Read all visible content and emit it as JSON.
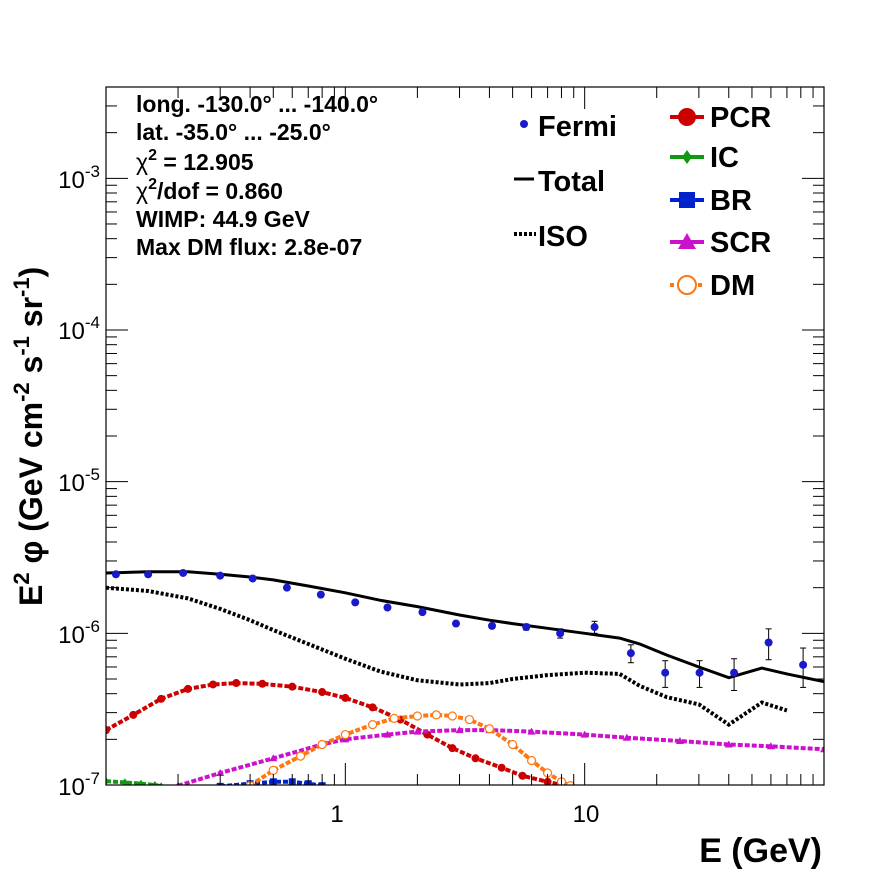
{
  "chart_data": {
    "type": "line",
    "x_scale": "log",
    "y_scale": "log",
    "xlim": [
      0.1,
      100
    ],
    "ylim": [
      1e-07,
      0.004
    ],
    "xlabel": "E (GeV)",
    "ylabel": {
      "base": "E",
      "sup1": "2",
      "phi": "φ (GeV cm",
      "sup2": "-2",
      "mid": " s",
      "sup3": "-1",
      "end": " sr",
      "sup4": "-1",
      "close": ")"
    },
    "x_ticks": [
      {
        "value": 1,
        "label": "1"
      },
      {
        "value": 10,
        "label": "10"
      }
    ],
    "y_ticks": [
      {
        "value": 1e-07,
        "base": "10",
        "exp": "-7"
      },
      {
        "value": 1e-06,
        "base": "10",
        "exp": "-6"
      },
      {
        "value": 1e-05,
        "base": "10",
        "exp": "-5"
      },
      {
        "value": 0.0001,
        "base": "10",
        "exp": "-4"
      },
      {
        "value": 0.001,
        "base": "10",
        "exp": "-3"
      }
    ],
    "info_text": {
      "longitude": "long. -130.0° ... -140.0°",
      "latitude": "lat. -35.0° ... -25.0°",
      "chi2_label": "χ",
      "chi2_sup": "2",
      "chi2_value": " = 12.905",
      "chi2dof_label": "χ",
      "chi2dof_sup": "2",
      "chi2dof_value": "/dof = 0.860",
      "wimp": "WIMP: 44.9 GeV",
      "max_dm_flux": "Max DM flux: 2.8e-07"
    },
    "legend": [
      {
        "name": "Fermi",
        "color": "#1a1acc",
        "style": "point"
      },
      {
        "name": "Total",
        "color": "#000000",
        "style": "solid"
      },
      {
        "name": "ISO",
        "color": "#000000",
        "style": "dotted"
      },
      {
        "name": "PCR",
        "color": "#cc0000",
        "style": "circle"
      },
      {
        "name": "IC",
        "color": "#119911",
        "style": "diamond"
      },
      {
        "name": "BR",
        "color": "#0022cc",
        "style": "square"
      },
      {
        "name": "SCR",
        "color": "#cc11cc",
        "style": "triangle"
      },
      {
        "name": "DM",
        "color": "#ff7711",
        "style": "open-circle"
      }
    ],
    "series": [
      {
        "name": "Total",
        "color": "#000000",
        "style": "solid",
        "x": [
          0.1,
          0.15,
          0.22,
          0.3,
          0.4,
          0.5,
          0.7,
          1.0,
          1.4,
          2.0,
          3.0,
          4.0,
          5.0,
          7.0,
          10.0,
          14.0,
          17.0,
          22.0,
          30.0,
          40.0,
          55.0,
          70.0,
          100.0
        ],
        "y": [
          2.5e-06,
          2.55e-06,
          2.55e-06,
          2.45e-06,
          2.35e-06,
          2.25e-06,
          2.05e-06,
          1.85e-06,
          1.65e-06,
          1.5e-06,
          1.32e-06,
          1.22e-06,
          1.16e-06,
          1.08e-06,
          1e-06,
          9.3e-07,
          8.5e-07,
          7.2e-07,
          6e-07,
          5.1e-07,
          5.9e-07,
          5.4e-07,
          4.8e-07
        ]
      },
      {
        "name": "ISO",
        "color": "#000000",
        "style": "dotted",
        "x": [
          0.1,
          0.15,
          0.22,
          0.3,
          0.4,
          0.5,
          0.7,
          1.0,
          1.4,
          2.0,
          3.0,
          4.0,
          5.0,
          7.0,
          10.0,
          14.0,
          17.0,
          22.0,
          30.0,
          40.0,
          55.0,
          70.0
        ],
        "y": [
          2e-06,
          1.9e-06,
          1.7e-06,
          1.45e-06,
          1.22e-06,
          1.05e-06,
          8.5e-07,
          6.8e-07,
          5.6e-07,
          4.9e-07,
          4.6e-07,
          4.7e-07,
          5e-07,
          5.3e-07,
          5.5e-07,
          5.4e-07,
          4.5e-07,
          3.8e-07,
          3.4e-07,
          2.5e-07,
          3.5e-07,
          3.1e-07
        ]
      },
      {
        "name": "PCR",
        "color": "#cc0000",
        "style": "circle",
        "x": [
          0.1,
          0.13,
          0.17,
          0.22,
          0.28,
          0.35,
          0.45,
          0.6,
          0.8,
          1.0,
          1.3,
          1.7,
          2.2,
          2.8,
          3.5,
          4.5,
          5.5,
          7.0,
          8.5
        ],
        "y": [
          2.3e-07,
          2.9e-07,
          3.7e-07,
          4.3e-07,
          4.6e-07,
          4.7e-07,
          4.65e-07,
          4.45e-07,
          4.1e-07,
          3.75e-07,
          3.25e-07,
          2.7e-07,
          2.15e-07,
          1.75e-07,
          1.5e-07,
          1.3e-07,
          1.15e-07,
          1.05e-07,
          9.8e-08
        ]
      },
      {
        "name": "IC",
        "color": "#119911",
        "style": "diamond",
        "x": [
          0.1,
          0.12,
          0.14,
          0.16,
          0.17
        ],
        "y": [
          1.06e-07,
          1.04e-07,
          1.02e-07,
          1e-07,
          9.8e-08
        ]
      },
      {
        "name": "BR",
        "color": "#0022cc",
        "style": "square",
        "x": [
          0.3,
          0.4,
          0.5,
          0.6,
          0.7,
          0.8
        ],
        "y": [
          9.8e-08,
          1.02e-07,
          1.05e-07,
          1.05e-07,
          1.02e-07,
          9.9e-08
        ]
      },
      {
        "name": "SCR",
        "color": "#cc11cc",
        "style": "triangle",
        "x": [
          0.2,
          0.3,
          0.5,
          0.8,
          1.0,
          1.5,
          2.0,
          3.0,
          4.0,
          6.0,
          10.0,
          15.0,
          25.0,
          40.0,
          60.0,
          100.0
        ],
        "y": [
          9.9e-08,
          1.2e-07,
          1.5e-07,
          1.85e-07,
          2e-07,
          2.15e-07,
          2.25e-07,
          2.3e-07,
          2.3e-07,
          2.25e-07,
          2.15e-07,
          2.05e-07,
          1.95e-07,
          1.85e-07,
          1.8e-07,
          1.72e-07
        ]
      },
      {
        "name": "DM",
        "color": "#ff7711",
        "style": "open-circle",
        "x": [
          0.4,
          0.5,
          0.65,
          0.8,
          1.0,
          1.3,
          1.6,
          2.0,
          2.4,
          2.8,
          3.3,
          4.0,
          5.0,
          6.0,
          7.0,
          8.0,
          8.7
        ],
        "y": [
          9.9e-08,
          1.25e-07,
          1.55e-07,
          1.85e-07,
          2.15e-07,
          2.5e-07,
          2.75e-07,
          2.85e-07,
          2.9e-07,
          2.85e-07,
          2.7e-07,
          2.35e-07,
          1.85e-07,
          1.45e-07,
          1.2e-07,
          1.05e-07,
          9.9e-08
        ]
      }
    ],
    "fermi_points": {
      "name": "Fermi",
      "color": "#1a1acc",
      "x": [
        0.11,
        0.15,
        0.21,
        0.3,
        0.41,
        0.57,
        0.79,
        1.1,
        1.5,
        2.1,
        2.9,
        4.1,
        5.7,
        7.9,
        11.0,
        15.6,
        21.7,
        30.2,
        42.1,
        58.7,
        81.8
      ],
      "y": [
        2.45e-06,
        2.45e-06,
        2.5e-06,
        2.4e-06,
        2.3e-06,
        2e-06,
        1.8e-06,
        1.6e-06,
        1.48e-06,
        1.38e-06,
        1.16e-06,
        1.12e-06,
        1.1e-06,
        1e-06,
        1.1e-06,
        7.4e-07,
        5.5e-07,
        5.5e-07,
        5.5e-07,
        8.7e-07,
        6.2e-07
      ],
      "err": [
        3e-08,
        3e-08,
        3e-08,
        3e-08,
        3e-08,
        3e-08,
        3e-08,
        3e-08,
        3e-08,
        4e-08,
        4e-08,
        4e-08,
        5e-08,
        7e-08,
        1e-07,
        1e-07,
        1.1e-07,
        1.1e-07,
        1.3e-07,
        2e-07,
        1.8e-07
      ]
    }
  }
}
